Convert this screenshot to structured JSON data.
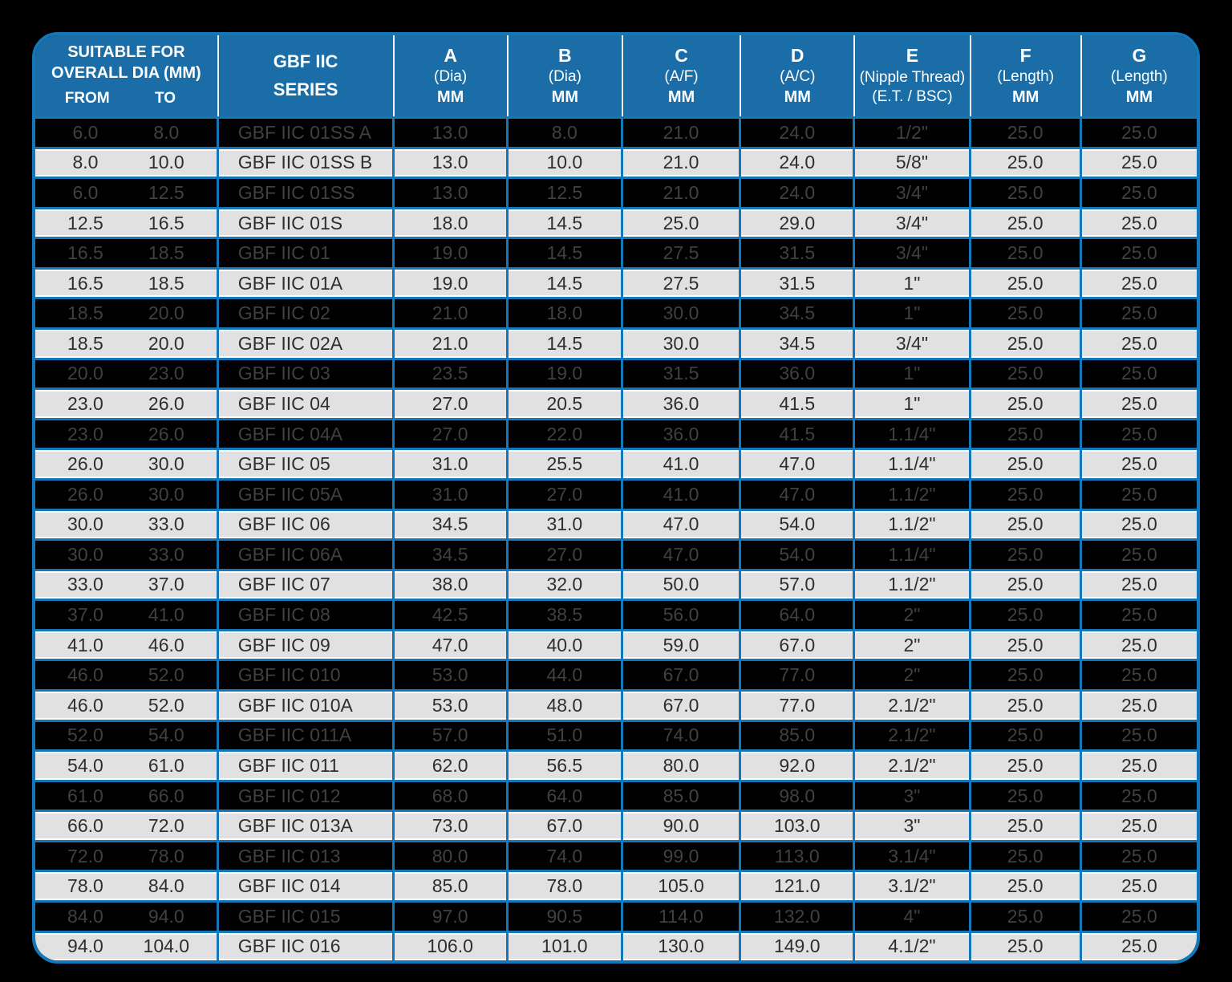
{
  "colors": {
    "header_blue": "#1a6da7",
    "border_blue": "#1478b8",
    "header_text": "#ffffff",
    "row_dark_bg": "#010101",
    "row_dark_text": "#404040",
    "row_light_bg": "#e1e1e1",
    "row_light_text": "#2e2e2e"
  },
  "table": {
    "header": {
      "col1": {
        "title_line1": "SUITABLE FOR",
        "title_line2": "OVERALL DIA (MM)",
        "sub_from": "FROM",
        "sub_to": "TO"
      },
      "col2": {
        "line1": "GBF IIC",
        "line2": "SERIES"
      },
      "measure_cols": [
        {
          "letter": "A",
          "desc": "(Dia)",
          "unit": "MM"
        },
        {
          "letter": "B",
          "desc": "(Dia)",
          "unit": "MM"
        },
        {
          "letter": "C",
          "desc": "(A/F)",
          "unit": "MM"
        },
        {
          "letter": "D",
          "desc": "(A/C)",
          "unit": "MM"
        },
        {
          "letter": "E",
          "desc": "(Nipple Thread)",
          "unit": "(E.T. / BSC)"
        },
        {
          "letter": "F",
          "desc": "(Length)",
          "unit": "MM"
        },
        {
          "letter": "G",
          "desc": "(Length)",
          "unit": "MM"
        }
      ]
    },
    "rows": [
      {
        "from": "6.0",
        "to": "8.0",
        "series": "GBF IIC 01SS A",
        "a": "13.0",
        "b": "8.0",
        "c": "21.0",
        "d": "24.0",
        "e": "1/2\"",
        "f": "25.0",
        "g": "25.0"
      },
      {
        "from": "8.0",
        "to": "10.0",
        "series": "GBF IIC 01SS B",
        "a": "13.0",
        "b": "10.0",
        "c": "21.0",
        "d": "24.0",
        "e": "5/8\"",
        "f": "25.0",
        "g": "25.0"
      },
      {
        "from": "6.0",
        "to": "12.5",
        "series": "GBF IIC 01SS",
        "a": "13.0",
        "b": "12.5",
        "c": "21.0",
        "d": "24.0",
        "e": "3/4\"",
        "f": "25.0",
        "g": "25.0"
      },
      {
        "from": "12.5",
        "to": "16.5",
        "series": "GBF IIC 01S",
        "a": "18.0",
        "b": "14.5",
        "c": "25.0",
        "d": "29.0",
        "e": "3/4\"",
        "f": "25.0",
        "g": "25.0"
      },
      {
        "from": "16.5",
        "to": "18.5",
        "series": "GBF IIC 01",
        "a": "19.0",
        "b": "14.5",
        "c": "27.5",
        "d": "31.5",
        "e": "3/4\"",
        "f": "25.0",
        "g": "25.0"
      },
      {
        "from": "16.5",
        "to": "18.5",
        "series": "GBF IIC 01A",
        "a": "19.0",
        "b": "14.5",
        "c": "27.5",
        "d": "31.5",
        "e": "1\"",
        "f": "25.0",
        "g": "25.0"
      },
      {
        "from": "18.5",
        "to": "20.0",
        "series": "GBF IIC 02",
        "a": "21.0",
        "b": "18.0",
        "c": "30.0",
        "d": "34.5",
        "e": "1\"",
        "f": "25.0",
        "g": "25.0"
      },
      {
        "from": "18.5",
        "to": "20.0",
        "series": "GBF IIC 02A",
        "a": "21.0",
        "b": "14.5",
        "c": "30.0",
        "d": "34.5",
        "e": "3/4\"",
        "f": "25.0",
        "g": "25.0"
      },
      {
        "from": "20.0",
        "to": "23.0",
        "series": "GBF IIC 03",
        "a": "23.5",
        "b": "19.0",
        "c": "31.5",
        "d": "36.0",
        "e": "1\"",
        "f": "25.0",
        "g": "25.0"
      },
      {
        "from": "23.0",
        "to": "26.0",
        "series": "GBF IIC 04",
        "a": "27.0",
        "b": "20.5",
        "c": "36.0",
        "d": "41.5",
        "e": "1\"",
        "f": "25.0",
        "g": "25.0"
      },
      {
        "from": "23.0",
        "to": "26.0",
        "series": "GBF IIC 04A",
        "a": "27.0",
        "b": "22.0",
        "c": "36.0",
        "d": "41.5",
        "e": "1.1/4\"",
        "f": "25.0",
        "g": "25.0"
      },
      {
        "from": "26.0",
        "to": "30.0",
        "series": "GBF IIC 05",
        "a": "31.0",
        "b": "25.5",
        "c": "41.0",
        "d": "47.0",
        "e": "1.1/4\"",
        "f": "25.0",
        "g": "25.0"
      },
      {
        "from": "26.0",
        "to": "30.0",
        "series": "GBF IIC 05A",
        "a": "31.0",
        "b": "27.0",
        "c": "41.0",
        "d": "47.0",
        "e": "1.1/2\"",
        "f": "25.0",
        "g": "25.0"
      },
      {
        "from": "30.0",
        "to": "33.0",
        "series": "GBF IIC 06",
        "a": "34.5",
        "b": "31.0",
        "c": "47.0",
        "d": "54.0",
        "e": "1.1/2\"",
        "f": "25.0",
        "g": "25.0"
      },
      {
        "from": "30.0",
        "to": "33.0",
        "series": "GBF IIC 06A",
        "a": "34.5",
        "b": "27.0",
        "c": "47.0",
        "d": "54.0",
        "e": "1.1/4\"",
        "f": "25.0",
        "g": "25.0"
      },
      {
        "from": "33.0",
        "to": "37.0",
        "series": "GBF IIC 07",
        "a": "38.0",
        "b": "32.0",
        "c": "50.0",
        "d": "57.0",
        "e": "1.1/2\"",
        "f": "25.0",
        "g": "25.0"
      },
      {
        "from": "37.0",
        "to": "41.0",
        "series": "GBF IIC 08",
        "a": "42.5",
        "b": "38.5",
        "c": "56.0",
        "d": "64.0",
        "e": "2\"",
        "f": "25.0",
        "g": "25.0"
      },
      {
        "from": "41.0",
        "to": "46.0",
        "series": "GBF IIC 09",
        "a": "47.0",
        "b": "40.0",
        "c": "59.0",
        "d": "67.0",
        "e": "2\"",
        "f": "25.0",
        "g": "25.0"
      },
      {
        "from": "46.0",
        "to": "52.0",
        "series": "GBF IIC 010",
        "a": "53.0",
        "b": "44.0",
        "c": "67.0",
        "d": "77.0",
        "e": "2\"",
        "f": "25.0",
        "g": "25.0"
      },
      {
        "from": "46.0",
        "to": "52.0",
        "series": "GBF IIC 010A",
        "a": "53.0",
        "b": "48.0",
        "c": "67.0",
        "d": "77.0",
        "e": "2.1/2\"",
        "f": "25.0",
        "g": "25.0"
      },
      {
        "from": "52.0",
        "to": "54.0",
        "series": "GBF IIC 011A",
        "a": "57.0",
        "b": "51.0",
        "c": "74.0",
        "d": "85.0",
        "e": "2.1/2\"",
        "f": "25.0",
        "g": "25.0"
      },
      {
        "from": "54.0",
        "to": "61.0",
        "series": "GBF IIC 011",
        "a": "62.0",
        "b": "56.5",
        "c": "80.0",
        "d": "92.0",
        "e": "2.1/2\"",
        "f": "25.0",
        "g": "25.0"
      },
      {
        "from": "61.0",
        "to": "66.0",
        "series": "GBF IIC 012",
        "a": "68.0",
        "b": "64.0",
        "c": "85.0",
        "d": "98.0",
        "e": "3\"",
        "f": "25.0",
        "g": "25.0"
      },
      {
        "from": "66.0",
        "to": "72.0",
        "series": "GBF IIC 013A",
        "a": "73.0",
        "b": "67.0",
        "c": "90.0",
        "d": "103.0",
        "e": "3\"",
        "f": "25.0",
        "g": "25.0"
      },
      {
        "from": "72.0",
        "to": "78.0",
        "series": "GBF IIC 013",
        "a": "80.0",
        "b": "74.0",
        "c": "99.0",
        "d": "113.0",
        "e": "3.1/4\"",
        "f": "25.0",
        "g": "25.0"
      },
      {
        "from": "78.0",
        "to": "84.0",
        "series": "GBF IIC 014",
        "a": "85.0",
        "b": "78.0",
        "c": "105.0",
        "d": "121.0",
        "e": "3.1/2\"",
        "f": "25.0",
        "g": "25.0"
      },
      {
        "from": "84.0",
        "to": "94.0",
        "series": "GBF IIC 015",
        "a": "97.0",
        "b": "90.5",
        "c": "114.0",
        "d": "132.0",
        "e": "4\"",
        "f": "25.0",
        "g": "25.0"
      },
      {
        "from": "94.0",
        "to": "104.0",
        "series": "GBF IIC 016",
        "a": "106.0",
        "b": "101.0",
        "c": "130.0",
        "d": "149.0",
        "e": "4.1/2\"",
        "f": "25.0",
        "g": "25.0"
      }
    ]
  }
}
